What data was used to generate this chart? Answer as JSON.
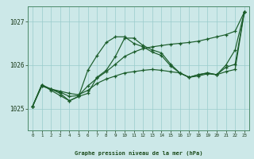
{
  "title": "Graphe pression niveau de la mer (hPa)",
  "x_labels": [
    "0",
    "1",
    "2",
    "3",
    "4",
    "5",
    "6",
    "7",
    "8",
    "9",
    "10",
    "11",
    "12",
    "13",
    "14",
    "15",
    "16",
    "17",
    "18",
    "19",
    "20",
    "21",
    "22",
    "23"
  ],
  "ylim": [
    1024.5,
    1027.35
  ],
  "yticks": [
    1025,
    1026,
    1027
  ],
  "bg_color": "#cce8e8",
  "grid_color": "#99cccc",
  "line_color": "#1a5c2a",
  "series": [
    [
      1025.05,
      1025.55,
      1025.45,
      1025.35,
      1025.18,
      1025.28,
      1025.35,
      1025.72,
      1025.88,
      1026.2,
      1026.62,
      1026.62,
      1026.45,
      1026.35,
      1026.28,
      1026.02,
      1025.82,
      1025.72,
      1025.78,
      1025.82,
      1025.78,
      1025.95,
      1026.02,
      1027.22
    ],
    [
      1025.05,
      1025.55,
      1025.42,
      1025.3,
      1025.18,
      1025.28,
      1025.88,
      1026.22,
      1026.52,
      1026.65,
      1026.65,
      1026.5,
      1026.42,
      1026.3,
      1026.22,
      1025.98,
      1025.82,
      1025.72,
      1025.78,
      1025.82,
      1025.78,
      1026.0,
      1026.35,
      1027.22
    ],
    [
      1025.05,
      1025.52,
      1025.45,
      1025.38,
      1025.28,
      1025.3,
      1025.52,
      1025.7,
      1025.85,
      1026.02,
      1026.2,
      1026.3,
      1026.38,
      1026.42,
      1026.45,
      1026.48,
      1026.5,
      1026.52,
      1026.55,
      1026.6,
      1026.65,
      1026.7,
      1026.78,
      1027.22
    ],
    [
      1025.05,
      1025.52,
      1025.45,
      1025.4,
      1025.35,
      1025.32,
      1025.42,
      1025.58,
      1025.68,
      1025.75,
      1025.82,
      1025.85,
      1025.88,
      1025.9,
      1025.88,
      1025.85,
      1025.82,
      1025.72,
      1025.75,
      1025.8,
      1025.78,
      1025.85,
      1025.9,
      1027.22
    ]
  ]
}
